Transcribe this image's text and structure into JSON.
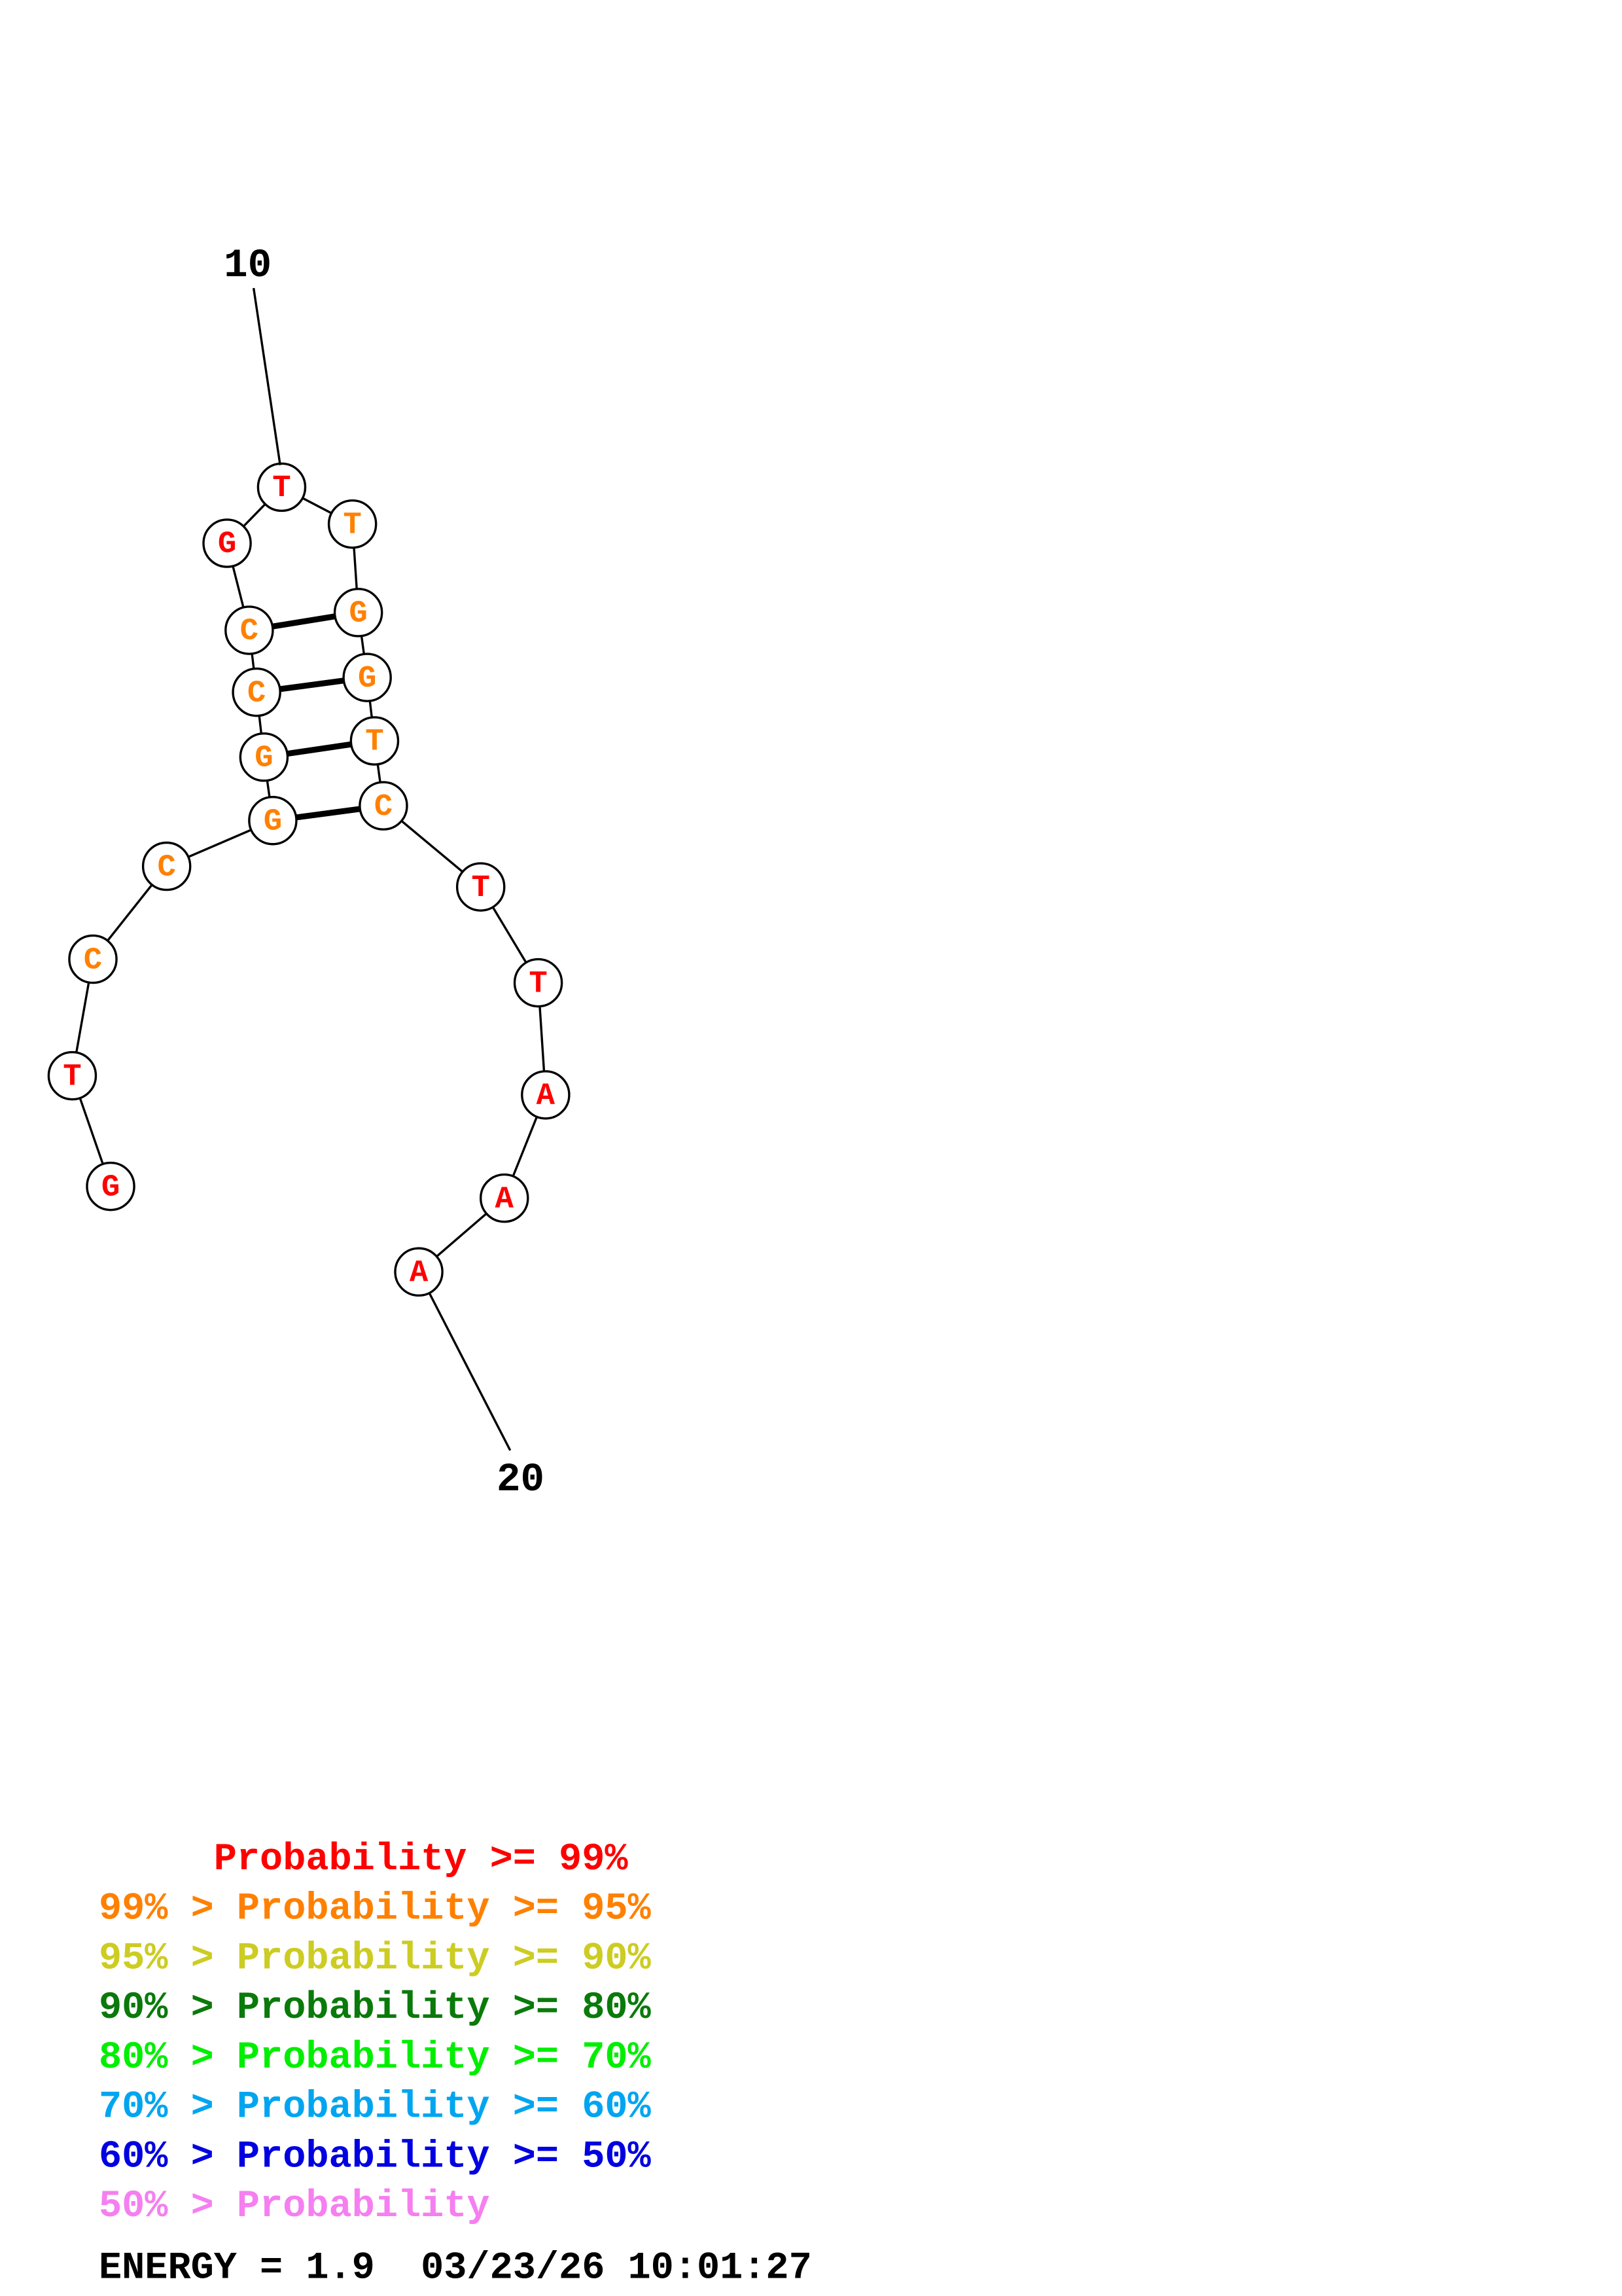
{
  "structure": {
    "sequence": [
      "G",
      "T",
      "C",
      "C",
      "G",
      "G",
      "C",
      "C",
      "G",
      "T",
      "T",
      "G",
      "G",
      "T",
      "C",
      "T",
      "T",
      "A",
      "A",
      "A"
    ],
    "probability_class": [
      "red",
      "red",
      "orange",
      "orange",
      "orange",
      "orange",
      "orange",
      "orange",
      "red",
      "red",
      "orange",
      "orange",
      "orange",
      "orange",
      "orange",
      "red",
      "red",
      "red",
      "red",
      "red"
    ],
    "pairs": [
      [
        5,
        15
      ],
      [
        6,
        14
      ],
      [
        7,
        13
      ],
      [
        8,
        12
      ]
    ],
    "position_labels": [
      {
        "position": 10,
        "text": "10"
      },
      {
        "position": 20,
        "text": "20"
      }
    ]
  },
  "colors": {
    "red": "#ff0000",
    "orange": "#ff8000",
    "yellow": "#cccc22",
    "darkgreen": "#0a7a0a",
    "green": "#00ee00",
    "cyan": "#00a5f0",
    "blue": "#0000e0",
    "pink": "#f57ff0"
  },
  "legend": [
    {
      "text": "     Probability >= 99%",
      "color": "red"
    },
    {
      "text": "99% > Probability >= 95%",
      "color": "orange"
    },
    {
      "text": "95% > Probability >= 90%",
      "color": "yellow"
    },
    {
      "text": "90% > Probability >= 80%",
      "color": "darkgreen"
    },
    {
      "text": "80% > Probability >= 70%",
      "color": "green"
    },
    {
      "text": "70% > Probability >= 60%",
      "color": "cyan"
    },
    {
      "text": "60% > Probability >= 50%",
      "color": "blue"
    },
    {
      "text": "50% > Probability",
      "color": "pink"
    }
  ],
  "footer": {
    "text": "ENERGY = 1.9  03/23/26 10:01:27"
  }
}
